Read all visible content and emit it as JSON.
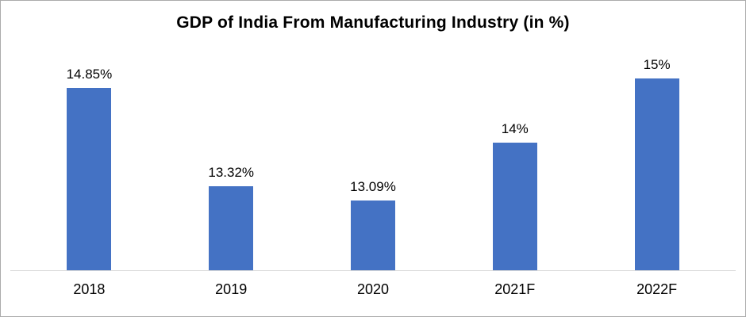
{
  "chart_data": {
    "type": "bar",
    "title": "GDP of India From Manufacturing Industry (in %)",
    "categories": [
      "2018",
      "2019",
      "2020",
      "2021F",
      "2022F"
    ],
    "values": [
      14.85,
      13.32,
      13.09,
      14,
      15
    ],
    "value_labels": [
      "14.85%",
      "13.32%",
      "13.09%",
      "14%",
      "15%"
    ],
    "xlabel": "",
    "ylabel": "",
    "ylim": [
      12,
      15.5
    ],
    "grid": false,
    "legend": false,
    "bar_color": "#4472C4",
    "axis_color": "#D9D9D9",
    "background_color": "#FFFFFF"
  }
}
